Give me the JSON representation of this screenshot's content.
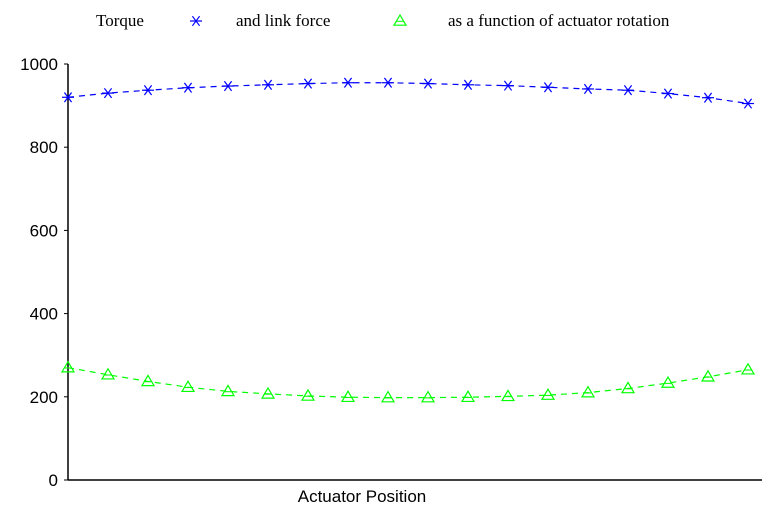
{
  "chart_data": {
    "type": "line",
    "title": "",
    "xlabel": "Actuator Position",
    "ylabel": "",
    "ylim": [
      0,
      1000
    ],
    "yticks": [
      "0",
      "200",
      "400",
      "600",
      "800",
      "1000"
    ],
    "grid": false,
    "legend_placement": "top",
    "legend": [
      {
        "label": "Torque",
        "color": "#0000ff",
        "marker": "asterisk"
      },
      {
        "label": "and link force",
        "color": "#00ff00",
        "marker": "triangle"
      },
      {
        "label": "as a function of actuator rotation"
      }
    ],
    "x": [
      1,
      2,
      3,
      4,
      5,
      6,
      7,
      8,
      9,
      10,
      11,
      12,
      13,
      14,
      15,
      16,
      17,
      18
    ],
    "series": [
      {
        "color": "#0000ff",
        "marker": "asterisk",
        "values": [
          920,
          930,
          937,
          943,
          947,
          950,
          953,
          955,
          955,
          953,
          950,
          948,
          944,
          940,
          937,
          929,
          919,
          905
        ]
      },
      {
        "color": "#00ff00",
        "marker": "triangle",
        "values": [
          270,
          253,
          237,
          223,
          213,
          207,
          202,
          199,
          198,
          198,
          199,
          201,
          204,
          210,
          220,
          233,
          248,
          265
        ]
      }
    ]
  }
}
